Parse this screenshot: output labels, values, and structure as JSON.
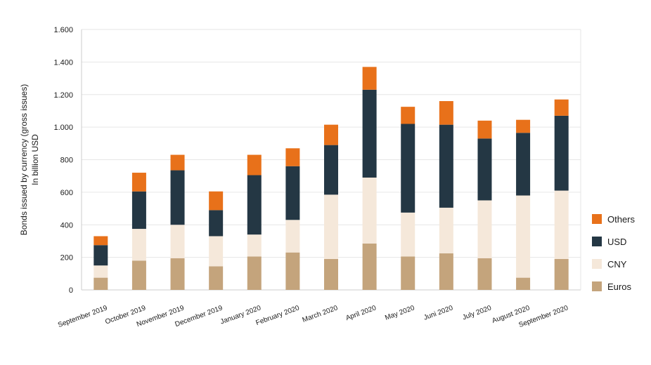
{
  "colors": {
    "Euros": "#c4a47c",
    "CNY": "#f5e8da",
    "USD": "#243744",
    "Others": "#e8711a",
    "grid": "#e6e6e6",
    "axis": "#cccccc"
  },
  "chart_data": {
    "type": "bar",
    "stacked": true,
    "title": "",
    "ylabel_lines": [
      "Bonds issued by currency (gross issues)",
      "In billion USD"
    ],
    "xlabel": "",
    "ylim": [
      0,
      1600
    ],
    "yticks": [
      {
        "value": 0,
        "label": "0"
      },
      {
        "value": 200,
        "label": "200"
      },
      {
        "value": 400,
        "label": "400"
      },
      {
        "value": 600,
        "label": "600"
      },
      {
        "value": 800,
        "label": "800"
      },
      {
        "value": 1000,
        "label": "1.000"
      },
      {
        "value": 1200,
        "label": "1.200"
      },
      {
        "value": 1400,
        "label": "1.400"
      },
      {
        "value": 1600,
        "label": "1.600"
      }
    ],
    "grid": true,
    "legend_position": "right-bottom",
    "categories": [
      "September 2019",
      "October 2019",
      "November 2019",
      "December 2019",
      "January 2020",
      "February 2020",
      "March 2020",
      "April 2020",
      "May 2020",
      "Juni 2020",
      "July 2020",
      "August 2020",
      "September 2020"
    ],
    "series": [
      {
        "name": "Euros",
        "values": [
          75,
          180,
          195,
          145,
          205,
          230,
          190,
          285,
          205,
          225,
          195,
          75,
          190
        ]
      },
      {
        "name": "CNY",
        "values": [
          75,
          195,
          205,
          185,
          135,
          200,
          395,
          405,
          270,
          280,
          355,
          505,
          420
        ]
      },
      {
        "name": "USD",
        "values": [
          125,
          230,
          335,
          160,
          365,
          330,
          305,
          540,
          545,
          510,
          380,
          385,
          460
        ]
      },
      {
        "name": "Others",
        "values": [
          55,
          115,
          95,
          115,
          125,
          110,
          125,
          140,
          105,
          145,
          110,
          80,
          100
        ]
      }
    ],
    "legend_order": [
      "Others",
      "USD",
      "CNY",
      "Euros"
    ]
  }
}
